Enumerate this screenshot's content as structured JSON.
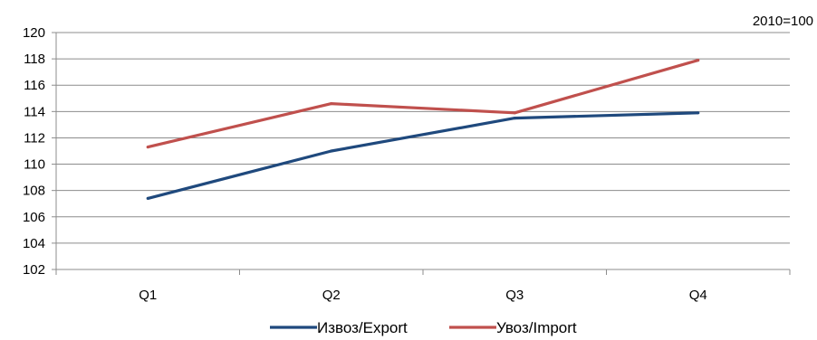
{
  "chart_data": {
    "type": "line",
    "note": "2010=100",
    "categories": [
      "Q1",
      "Q2",
      "Q3",
      "Q4"
    ],
    "ylim": [
      102,
      120
    ],
    "yticks": [
      102,
      104,
      106,
      108,
      110,
      112,
      114,
      116,
      118,
      120
    ],
    "grid": true,
    "legend_position": "bottom",
    "series": [
      {
        "name": "Извоз/Export",
        "color": "#1F497D",
        "values": [
          107.4,
          111.0,
          113.5,
          113.9
        ]
      },
      {
        "name": "Увоз/Import",
        "color": "#C0504D",
        "values": [
          111.3,
          114.6,
          113.9,
          117.9
        ]
      }
    ]
  }
}
